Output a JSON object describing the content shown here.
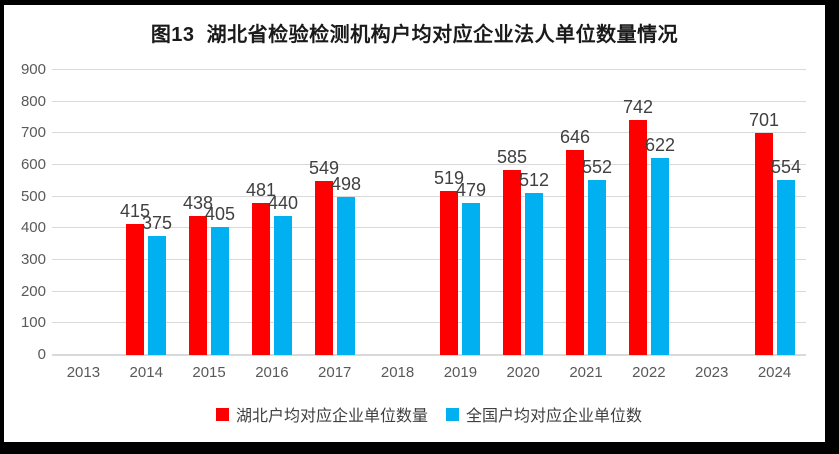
{
  "title": "图13  湖北省检验检测机构户均对应企业法人单位数量情况",
  "chart_data": {
    "type": "bar",
    "categories": [
      "2013",
      "2014",
      "2015",
      "2016",
      "2017",
      "2018",
      "2019",
      "2020",
      "2021",
      "2022",
      "2023",
      "2024"
    ],
    "series": [
      {
        "key": "hubei",
        "name": "湖北户均对应企业单位数量",
        "color": "#FF0000",
        "values": [
          null,
          415,
          438,
          481,
          549,
          null,
          519,
          585,
          646,
          742,
          null,
          701
        ]
      },
      {
        "key": "national",
        "name": "全国户均对应企业单位数",
        "color": "#00B0F0",
        "values": [
          null,
          375,
          405,
          440,
          498,
          null,
          479,
          512,
          552,
          622,
          null,
          554
        ]
      }
    ],
    "title": "图13  湖北省检验检测机构户均对应企业法人单位数量情况",
    "xlabel": "",
    "ylabel": "",
    "ylim": [
      0,
      900
    ],
    "ytick_step": 100,
    "yticks": [
      0,
      100,
      200,
      300,
      400,
      500,
      600,
      700,
      800,
      900
    ],
    "grid": true,
    "legend_position": "bottom",
    "colors": {
      "gridline": "#D9D9D9",
      "axis_text": "#595959",
      "label_text": "#404040",
      "title_text": "#1A1A1A",
      "frame_border": "#000000",
      "background": "#FFFFFF"
    }
  }
}
